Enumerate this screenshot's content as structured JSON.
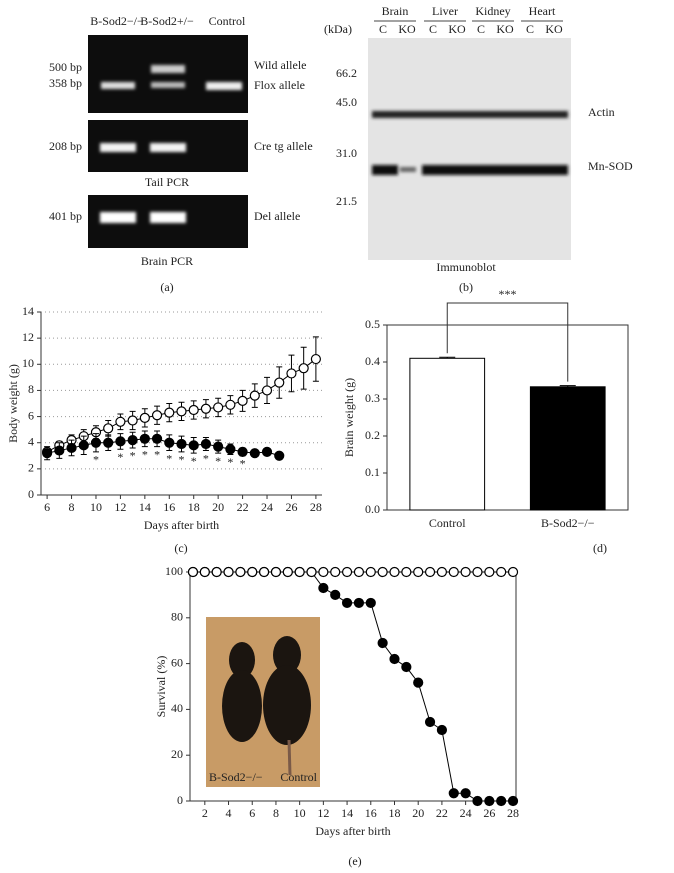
{
  "panel_a": {
    "lanes": [
      "B-Sod2−/−",
      "B-Sod2+/−",
      "Control"
    ],
    "sizes": [
      "500 bp",
      "358 bp",
      "208 bp",
      "401 bp"
    ],
    "alleles": [
      "Wild allele",
      "Flox allele",
      "Cre tg allele",
      "Del allele"
    ],
    "captions": [
      "Tail PCR",
      "Brain PCR"
    ],
    "label": "(a)"
  },
  "panel_b": {
    "unit": "(kDa)",
    "tissues": [
      "Brain",
      "Liver",
      "Kidney",
      "Heart"
    ],
    "lanes": [
      "C",
      "KO"
    ],
    "markers": [
      "66.2",
      "45.0",
      "31.0",
      "21.5"
    ],
    "proteins": [
      "Actin",
      "Mn-SOD"
    ],
    "caption": "Immunoblot",
    "label": "(b)"
  },
  "chart_data": [
    {
      "type": "line",
      "label": "(c)",
      "x_label": "Days after birth",
      "y_label": "Body weight (g)",
      "xlim": [
        5.5,
        28.5
      ],
      "xticks": [
        6,
        8,
        10,
        12,
        14,
        16,
        18,
        20,
        22,
        24,
        26,
        28
      ],
      "ylim": [
        0,
        14
      ],
      "yticks": [
        0,
        2,
        4,
        6,
        8,
        10,
        12,
        14
      ],
      "grid": true,
      "frame": false,
      "series": [
        {
          "color": "#000",
          "marker_fill": "#fff",
          "x": [
            6,
            7,
            8,
            9,
            10,
            11,
            12,
            13,
            14,
            15,
            16,
            17,
            18,
            19,
            20,
            21,
            22,
            23,
            24,
            25,
            26,
            27,
            28
          ],
          "values": [
            3.3,
            3.8,
            4.2,
            4.5,
            4.8,
            5.1,
            5.6,
            5.7,
            5.9,
            6.1,
            6.3,
            6.4,
            6.5,
            6.6,
            6.7,
            6.9,
            7.2,
            7.6,
            8.0,
            8.6,
            9.3,
            9.7,
            10.4
          ],
          "errors": [
            0.3,
            0.3,
            0.4,
            0.5,
            0.5,
            0.6,
            0.6,
            0.7,
            0.7,
            0.7,
            0.7,
            0.7,
            0.7,
            0.7,
            0.7,
            0.7,
            0.8,
            0.9,
            1.0,
            1.2,
            1.4,
            1.6,
            1.7
          ]
        },
        {
          "color": "#000",
          "marker_fill": "#000",
          "x": [
            6,
            7,
            8,
            9,
            10,
            11,
            12,
            13,
            14,
            15,
            16,
            17,
            18,
            19,
            20,
            21,
            22,
            23,
            24,
            25
          ],
          "values": [
            3.2,
            3.4,
            3.6,
            3.8,
            4.0,
            4.0,
            4.1,
            4.2,
            4.3,
            4.3,
            4.0,
            3.9,
            3.8,
            3.9,
            3.7,
            3.5,
            3.3,
            3.2,
            3.3,
            3.0
          ],
          "errors": [
            0.5,
            0.6,
            0.6,
            0.7,
            0.7,
            0.6,
            0.6,
            0.6,
            0.6,
            0.6,
            0.6,
            0.6,
            0.6,
            0.5,
            0.5,
            0.4,
            0.3,
            0.2,
            0.2,
            0.1
          ]
        }
      ],
      "annotations": [
        {
          "x": 10,
          "text": "*"
        },
        {
          "x": 12,
          "text": "*"
        },
        {
          "x": 13,
          "text": "*"
        },
        {
          "x": 14,
          "text": "*"
        },
        {
          "x": 15,
          "text": "*"
        },
        {
          "x": 16,
          "text": "*"
        },
        {
          "x": 17,
          "text": "*"
        },
        {
          "x": 18,
          "text": "*"
        },
        {
          "x": 19,
          "text": "*"
        },
        {
          "x": 20,
          "text": "*"
        },
        {
          "x": 21,
          "text": "*"
        },
        {
          "x": 22,
          "text": "*"
        }
      ]
    },
    {
      "type": "bar",
      "label": "(d)",
      "y_label": "Brain weight (g)",
      "categories": [
        "Control",
        "B-Sod2−/−"
      ],
      "values": [
        0.41,
        0.333
      ],
      "errors": [
        0.003,
        0.003
      ],
      "colors": [
        "#fff",
        "#000"
      ],
      "ylim": [
        0,
        0.5
      ],
      "yticks": [
        {
          "value": 0,
          "label": "0.0"
        },
        0.1,
        0.2,
        0.3,
        0.4,
        0.5
      ],
      "grid": false,
      "frame": true,
      "annotation": "***"
    },
    {
      "type": "line",
      "label": "(e)",
      "x_label": "Days after birth",
      "y_label": "Survival (%)",
      "xlim": [
        0.75,
        28.25
      ],
      "xticks": [
        2,
        4,
        6,
        8,
        10,
        12,
        14,
        16,
        18,
        20,
        22,
        24,
        26,
        28
      ],
      "ylim": [
        0,
        100
      ],
      "yticks": [
        0,
        20,
        40,
        60,
        80,
        100
      ],
      "grid": false,
      "frame": true,
      "x": [
        1,
        2,
        3,
        4,
        5,
        6,
        7,
        8,
        9,
        10,
        11,
        12,
        13,
        14,
        15,
        16,
        17,
        18,
        19,
        20,
        21,
        22,
        23,
        24,
        25,
        26,
        27,
        28
      ],
      "series": [
        {
          "color": "#000",
          "marker_fill": "#000",
          "values": [
            100,
            100,
            100,
            100,
            100,
            100,
            100,
            100,
            100,
            100,
            100,
            93,
            90,
            86.5,
            86.5,
            86.5,
            69,
            62,
            58.5,
            51.7,
            34.5,
            31,
            3.4,
            3.4,
            0,
            0,
            0,
            0
          ]
        },
        {
          "color": "#000",
          "marker_fill": "#fff",
          "values": [
            100,
            100,
            100,
            100,
            100,
            100,
            100,
            100,
            100,
            100,
            100,
            100,
            100,
            100,
            100,
            100,
            100,
            100,
            100,
            100,
            100,
            100,
            100,
            100,
            100,
            100,
            100,
            100
          ]
        }
      ],
      "inset_labels": [
        "B-Sod2−/−",
        "Control"
      ]
    }
  ]
}
